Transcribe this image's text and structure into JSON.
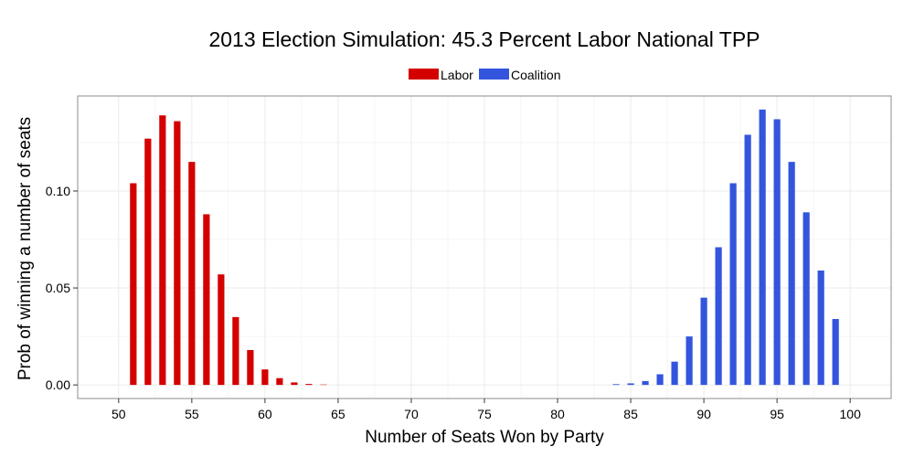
{
  "chart_data": {
    "type": "bar",
    "title": "2013 Election Simulation: 45.3 Percent Labor National TPP",
    "xlabel": "Number of Seats Won by Party",
    "ylabel": "Prob of winning a number of seats",
    "xlim": [
      47.2,
      102.8
    ],
    "ylim": [
      -0.007,
      0.149
    ],
    "x_ticks": [
      50,
      55,
      60,
      65,
      70,
      75,
      80,
      85,
      90,
      95,
      100
    ],
    "y_ticks": [
      0.0,
      0.05,
      0.1
    ],
    "y_tick_labels": [
      "0.00",
      "0.05",
      "0.10"
    ],
    "legend_position": "top",
    "series": [
      {
        "name": "Labor",
        "color": "#d40000",
        "x": [
          51,
          52,
          53,
          54,
          55,
          56,
          57,
          58,
          59,
          60,
          61,
          62,
          63,
          64
        ],
        "values": [
          0.104,
          0.127,
          0.139,
          0.136,
          0.115,
          0.088,
          0.057,
          0.035,
          0.018,
          0.008,
          0.0035,
          0.0013,
          0.0005,
          0.0002
        ]
      },
      {
        "name": "Coalition",
        "color": "#3355dd",
        "x": [
          84,
          85,
          86,
          87,
          88,
          89,
          90,
          91,
          92,
          93,
          94,
          95,
          96,
          97,
          98,
          99
        ],
        "values": [
          0.0004,
          0.0008,
          0.002,
          0.0055,
          0.012,
          0.025,
          0.045,
          0.071,
          0.104,
          0.129,
          0.142,
          0.137,
          0.115,
          0.089,
          0.059,
          0.034
        ]
      }
    ]
  }
}
